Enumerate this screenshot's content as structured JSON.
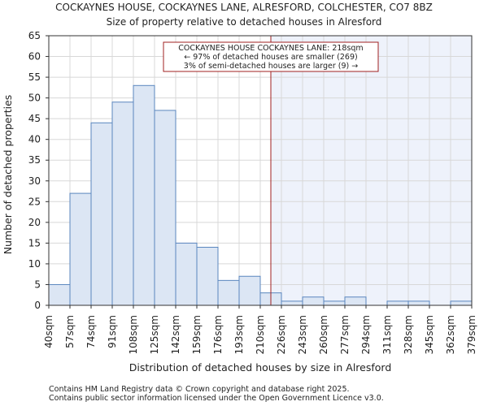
{
  "chart_data": {
    "type": "bar",
    "title": "COCKAYNES HOUSE, COCKAYNES LANE, ALRESFORD, COLCHESTER, CO7 8BZ",
    "subtitle": "Size of property relative to detached houses in Alresford",
    "xlabel": "Distribution of detached houses by size in Alresford",
    "ylabel": "Number of detached properties",
    "ylim": [
      0,
      65
    ],
    "yticks": [
      0,
      5,
      10,
      15,
      20,
      25,
      30,
      35,
      40,
      45,
      50,
      55,
      60,
      65
    ],
    "bin_labels": [
      "40sqm",
      "57sqm",
      "74sqm",
      "91sqm",
      "108sqm",
      "125sqm",
      "142sqm",
      "159sqm",
      "176sqm",
      "193sqm",
      "210sqm",
      "226sqm",
      "243sqm",
      "260sqm",
      "277sqm",
      "294sqm",
      "311sqm",
      "328sqm",
      "345sqm",
      "362sqm",
      "379sqm"
    ],
    "values": [
      5,
      27,
      44,
      49,
      53,
      47,
      15,
      14,
      6,
      7,
      3,
      1,
      2,
      1,
      2,
      0,
      1,
      1,
      0,
      1
    ],
    "marker": {
      "value_label": "218sqm",
      "bin_position": 10.5,
      "line1": "COCKAYNES HOUSE COCKAYNES LANE: 218sqm",
      "line2": "← 97% of detached houses are smaller (269)",
      "line3": "3% of semi-detached houses are larger (9) →"
    },
    "grid": "both",
    "colors": {
      "bar_fill": "#dce6f4",
      "bar_stroke": "#5a86be",
      "marker_line": "#a02020",
      "highlight_region": "#eef2fb",
      "grid": "#d8d8d8"
    }
  },
  "footer": {
    "line1": "Contains HM Land Registry data © Crown copyright and database right 2025.",
    "line2": "Contains public sector information licensed under the Open Government Licence v3.0."
  }
}
